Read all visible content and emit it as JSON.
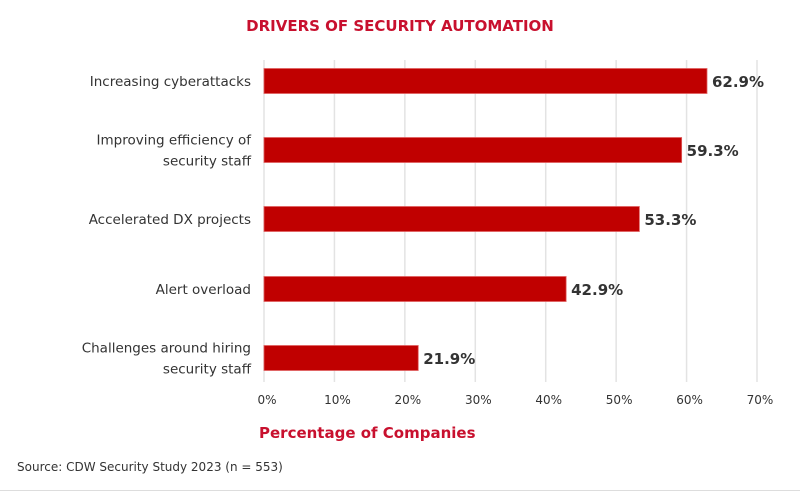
{
  "chart_data": {
    "type": "bar",
    "orientation": "horizontal",
    "title": "DRIVERS OF SECURITY AUTOMATION",
    "xlabel": "Percentage of Companies",
    "ylabel": "",
    "categories": [
      [
        "Increasing cyberattacks"
      ],
      [
        "Improving efficiency of",
        "security staff"
      ],
      [
        "Accelerated DX projects"
      ],
      [
        "Alert overload"
      ],
      [
        "Challenges around hiring",
        "security staff"
      ]
    ],
    "values": [
      62.9,
      59.3,
      53.3,
      42.9,
      21.9
    ],
    "data_labels": [
      "62.9%",
      "59.3%",
      "53.3%",
      "42.9%",
      "21.9%"
    ],
    "xlim": [
      0,
      70
    ],
    "xticks": [
      0,
      10,
      20,
      30,
      40,
      50,
      60,
      70
    ],
    "xtick_labels": [
      "0%",
      "10%",
      "20%",
      "30%",
      "40%",
      "50%",
      "60%",
      "70%"
    ],
    "grid": "vertical",
    "bar_color": "#c00000",
    "title_color": "#c8102e"
  },
  "source": "Source: CDW Security Study 2023 (n = 553)"
}
